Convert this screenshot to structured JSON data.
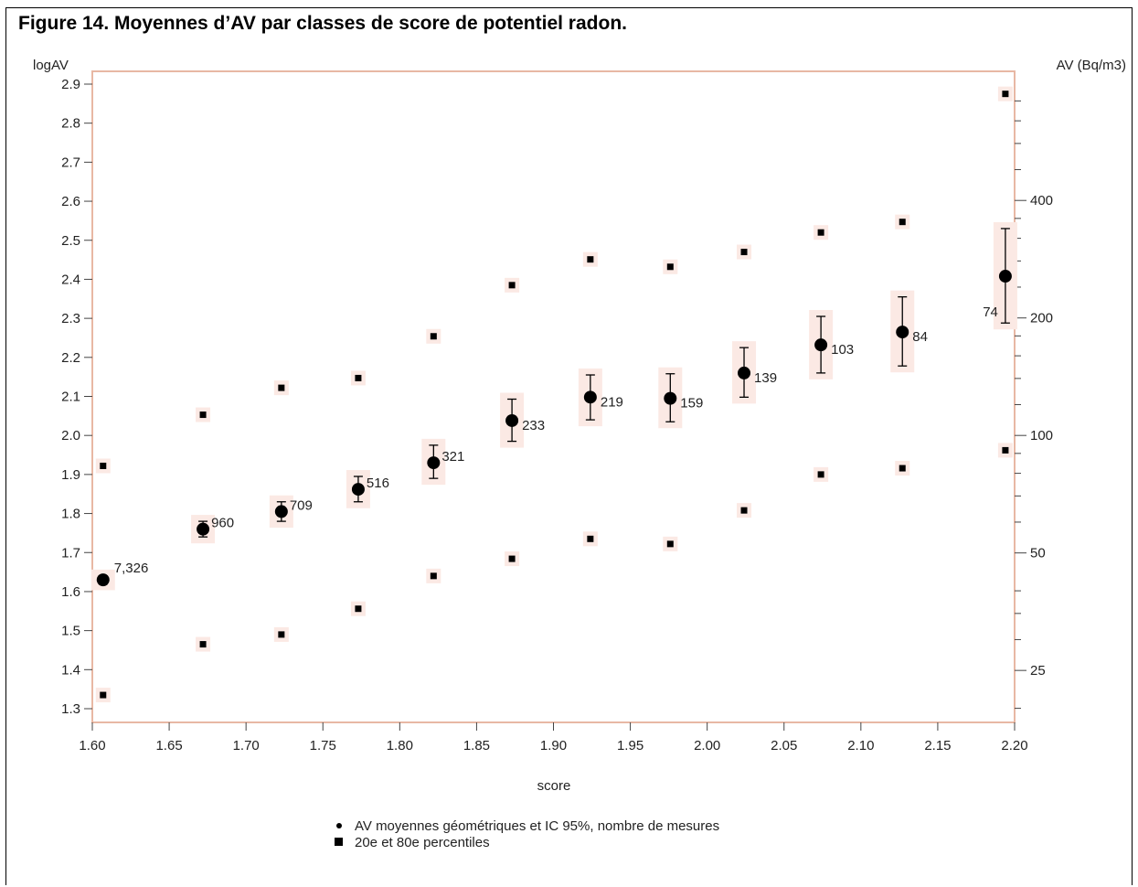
{
  "figure_title": "Figure 14. Moyennes d’AV par classes de score de potentiel radon.",
  "chart_data": {
    "type": "scatter",
    "xlabel": "score",
    "ylabel_left": "logAV",
    "ylabel_right": "AV (Bq/m3)",
    "xlim": [
      1.6,
      2.2
    ],
    "ylim": [
      1.3,
      2.9
    ],
    "x_ticks": [
      "1.60",
      "1.65",
      "1.70",
      "1.75",
      "1.80",
      "1.85",
      "1.90",
      "1.95",
      "2.00",
      "2.05",
      "2.10",
      "2.15",
      "2.20"
    ],
    "y_ticks": [
      "1.3",
      "1.4",
      "1.5",
      "1.6",
      "1.7",
      "1.8",
      "1.9",
      "2.0",
      "2.1",
      "2.2",
      "2.3",
      "2.4",
      "2.5",
      "2.6",
      "2.7",
      "2.8",
      "2.9"
    ],
    "right_ticks": [
      {
        "label": "25",
        "logAV": 1.398
      },
      {
        "label": "50",
        "logAV": 1.699
      },
      {
        "label": "100",
        "logAV": 2.0
      },
      {
        "label": "200",
        "logAV": 2.301
      },
      {
        "label": "400",
        "logAV": 2.602
      }
    ],
    "right_minor_ticks": [
      1.301,
      1.477,
      1.544,
      1.602,
      1.778,
      1.845,
      1.903,
      1.954,
      2.079,
      2.146,
      2.204,
      2.255,
      2.38,
      2.447,
      2.505,
      2.556,
      2.681,
      2.748,
      2.806,
      2.857
    ],
    "series": [
      {
        "name": "AV moyennes géométriques et IC 95%, nombre de mesures",
        "points": [
          {
            "x": 1.607,
            "y": 1.63,
            "lo": 1.62,
            "hi": 1.64,
            "n": "7,326"
          },
          {
            "x": 1.672,
            "y": 1.76,
            "lo": 1.74,
            "hi": 1.78,
            "n": "960"
          },
          {
            "x": 1.723,
            "y": 1.805,
            "lo": 1.78,
            "hi": 1.83,
            "n": "709"
          },
          {
            "x": 1.773,
            "y": 1.862,
            "lo": 1.83,
            "hi": 1.895,
            "n": "516"
          },
          {
            "x": 1.822,
            "y": 1.93,
            "lo": 1.89,
            "hi": 1.975,
            "n": "321"
          },
          {
            "x": 1.873,
            "y": 2.038,
            "lo": 1.985,
            "hi": 2.093,
            "n": "233"
          },
          {
            "x": 1.924,
            "y": 2.098,
            "lo": 2.04,
            "hi": 2.155,
            "n": "219"
          },
          {
            "x": 1.976,
            "y": 2.095,
            "lo": 2.035,
            "hi": 2.158,
            "n": "159"
          },
          {
            "x": 2.024,
            "y": 2.16,
            "lo": 2.098,
            "hi": 2.225,
            "n": "139"
          },
          {
            "x": 2.074,
            "y": 2.232,
            "lo": 2.16,
            "hi": 2.305,
            "n": "103"
          },
          {
            "x": 2.127,
            "y": 2.265,
            "lo": 2.178,
            "hi": 2.355,
            "n": "84"
          },
          {
            "x": 2.194,
            "y": 2.408,
            "lo": 2.288,
            "hi": 2.53,
            "n": "74"
          }
        ]
      },
      {
        "name": "20e et 80e percentiles",
        "points": [
          {
            "x": 1.607,
            "p20": 1.335,
            "p80": 1.922
          },
          {
            "x": 1.672,
            "p20": 1.465,
            "p80": 2.053
          },
          {
            "x": 1.723,
            "p20": 1.49,
            "p80": 2.122
          },
          {
            "x": 1.773,
            "p20": 1.556,
            "p80": 2.147
          },
          {
            "x": 1.822,
            "p20": 1.64,
            "p80": 2.254
          },
          {
            "x": 1.873,
            "p20": 1.684,
            "p80": 2.385
          },
          {
            "x": 1.924,
            "p20": 1.735,
            "p80": 2.451
          },
          {
            "x": 1.976,
            "p20": 1.722,
            "p80": 2.432
          },
          {
            "x": 2.024,
            "p20": 1.808,
            "p80": 2.47
          },
          {
            "x": 2.074,
            "p20": 1.9,
            "p80": 2.52
          },
          {
            "x": 2.127,
            "p20": 1.916,
            "p80": 2.547
          },
          {
            "x": 2.194,
            "p20": 1.962,
            "p80": 2.875
          }
        ]
      }
    ],
    "legend": [
      "AV moyennes géométriques et IC 95%, nombre de mesures",
      "20e et 80e percentiles"
    ],
    "legend_position": "bottom",
    "grid": false,
    "colors": {
      "frame": "#e8b8a4",
      "marker": "#000000",
      "glow": "#fbe9e4"
    }
  }
}
